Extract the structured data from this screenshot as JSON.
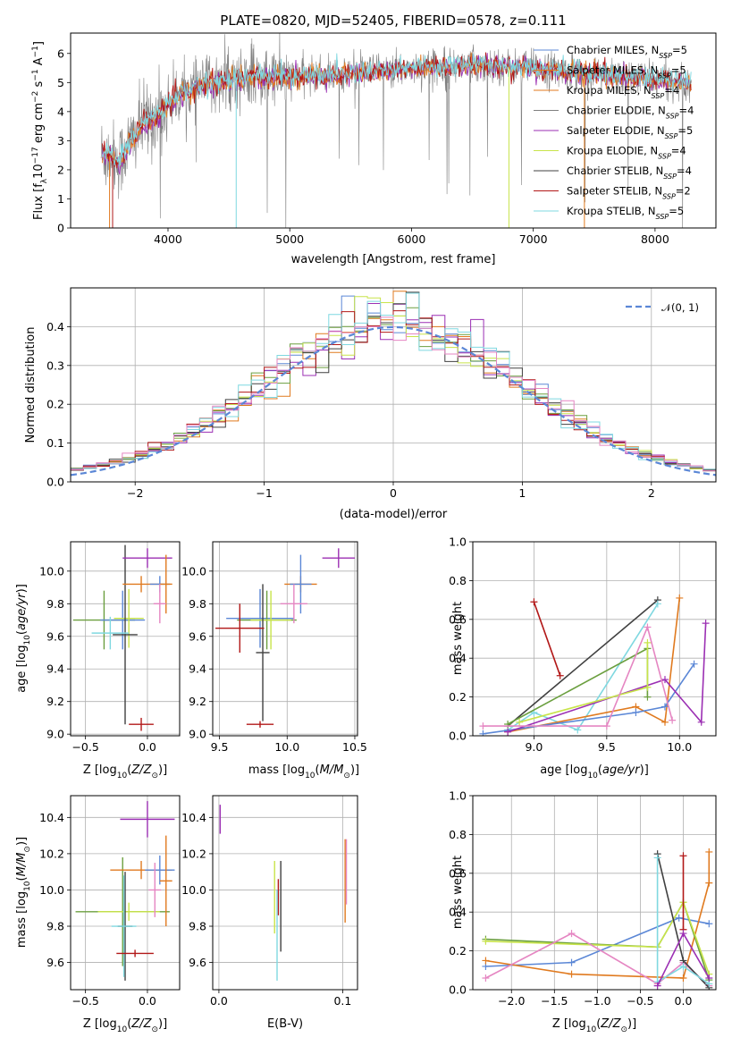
{
  "colors": {
    "cornflower": "#5b87d6",
    "orange": "#e07a1f",
    "green": "#6b9f3f",
    "purple": "#9b2fb3",
    "lime": "#c8e44a",
    "dark": "#404040",
    "red": "#b21818",
    "cyan": "#7fd8e0",
    "pink": "#e586c2",
    "gray": "#808080"
  },
  "chart_data": [
    {
      "id": "spectrum",
      "type": "line",
      "title": "PLATE=0820, MJD=52405, FIBERID=0578, z=0.111",
      "xlabel": "wavelength [Angstrom, rest frame]",
      "ylabel": "Flux [f_λ10^-17 erg cm^-2 s^-1 A^-1]",
      "xlim": [
        3200,
        8500
      ],
      "ylim": [
        0,
        6.7
      ],
      "xticks": [
        "4000",
        "5000",
        "6000",
        "7000",
        "8000"
      ],
      "yticks": [
        "0",
        "1",
        "2",
        "3",
        "4",
        "5",
        "6"
      ],
      "grid": false,
      "legend_position": "right",
      "data_range": [
        3450,
        8300
      ],
      "continuum": [
        [
          3450,
          2.6
        ],
        [
          3600,
          2.3
        ],
        [
          3700,
          3.0
        ],
        [
          3800,
          3.6
        ],
        [
          3950,
          4.0
        ],
        [
          4100,
          4.6
        ],
        [
          4300,
          4.9
        ],
        [
          4500,
          5.1
        ],
        [
          4700,
          5.2
        ],
        [
          5000,
          5.2
        ],
        [
          5500,
          5.3
        ],
        [
          6000,
          5.5
        ],
        [
          6500,
          5.6
        ],
        [
          7000,
          5.5
        ],
        [
          7500,
          5.3
        ],
        [
          8000,
          5.1
        ],
        [
          8300,
          5.0
        ]
      ],
      "series": [
        {
          "name": "Chabrier MILES, N_SSP=5",
          "color_key": "cornflower"
        },
        {
          "name": "Salpeter MILES, N_SSP=5",
          "color_key": "orange"
        },
        {
          "name": "Kroupa MILES, N_SSP=4",
          "color_key": "orange"
        },
        {
          "name": "Chabrier ELODIE, N_SSP=4",
          "color_key": "gray"
        },
        {
          "name": "Salpeter ELODIE, N_SSP=5",
          "color_key": "purple"
        },
        {
          "name": "Kroupa ELODIE, N_SSP=4",
          "color_key": "lime"
        },
        {
          "name": "Chabrier STELIB, N_SSP=4",
          "color_key": "dark"
        },
        {
          "name": "Salpeter STELIB, N_SSP=2",
          "color_key": "red"
        },
        {
          "name": "Kroupa STELIB, N_SSP=5",
          "color_key": "cyan"
        }
      ]
    },
    {
      "id": "residuals",
      "type": "line",
      "xlabel": "(data-model)/error",
      "ylabel": "Normed distribution",
      "xlim": [
        -2.5,
        2.5
      ],
      "ylim": [
        0,
        0.5
      ],
      "xticks": [
        "−2",
        "−1",
        "0",
        "1",
        "2"
      ],
      "yticks": [
        "0.0",
        "0.1",
        "0.2",
        "0.3",
        "0.4"
      ],
      "grid": true,
      "legend": "𝒩(0, 1)",
      "legend_position": "top-right",
      "bin_width": 0.1,
      "hist_colors": [
        "cornflower",
        "orange",
        "green",
        "purple",
        "lime",
        "dark",
        "red",
        "cyan",
        "pink"
      ]
    },
    {
      "id": "age-vs-Z",
      "type": "scatter",
      "xlabel": "Z [log10(Z/Z⊙)]",
      "ylabel": "age  [log10(age/yr)]",
      "xlim": [
        -0.62,
        0.26
      ],
      "ylim": [
        8.99,
        10.18
      ],
      "xticks": [
        "−0.5",
        "0.0"
      ],
      "yticks": [
        "9.0",
        "9.2",
        "9.4",
        "9.6",
        "9.8",
        "10.0"
      ],
      "points": [
        {
          "x": -0.35,
          "xerr": 0.25,
          "y": 9.7,
          "yerr": 0.18,
          "c": "green"
        },
        {
          "x": -0.2,
          "xerr": 0.18,
          "y": 9.7,
          "yerr": 0.18,
          "c": "cornflower"
        },
        {
          "x": -0.15,
          "xerr": 0.12,
          "y": 9.71,
          "yerr": 0.18,
          "c": "lime"
        },
        {
          "x": -0.18,
          "xerr": 0.1,
          "y": 9.61,
          "yerr": 0.55,
          "c": "dark"
        },
        {
          "x": -0.05,
          "xerr": 0.1,
          "y": 9.06,
          "yerr": 0.04,
          "c": "red"
        },
        {
          "x": -0.3,
          "xerr": 0.15,
          "y": 9.62,
          "yerr": 0.1,
          "c": "cyan"
        },
        {
          "x": 0.0,
          "xerr": 0.2,
          "y": 10.08,
          "yerr": 0.06,
          "c": "purple"
        },
        {
          "x": -0.05,
          "xerr": 0.15,
          "y": 9.92,
          "yerr": 0.05,
          "c": "orange"
        },
        {
          "x": 0.1,
          "xerr": 0.08,
          "y": 9.92,
          "yerr": 0.05,
          "c": "cornflower"
        },
        {
          "x": 0.15,
          "xerr": 0.05,
          "y": 9.92,
          "yerr": 0.18,
          "c": "orange"
        },
        {
          "x": 0.1,
          "xerr": 0.05,
          "y": 9.8,
          "yerr": 0.12,
          "c": "pink"
        }
      ]
    },
    {
      "id": "age-vs-mass",
      "type": "scatter",
      "xlabel": "mass [log10(M/M⊙)]",
      "xlim": [
        9.45,
        10.52
      ],
      "ylim": [
        8.99,
        10.18
      ],
      "xticks": [
        "9.5",
        "10.0",
        "10.5"
      ],
      "yticks": [
        "9.0",
        "9.2",
        "9.4",
        "9.6",
        "9.8",
        "10.0"
      ],
      "points": [
        {
          "x": 9.8,
          "xerr": 0.25,
          "y": 9.71,
          "yerr": 0.18,
          "c": "cornflower"
        },
        {
          "x": 9.85,
          "xerr": 0.22,
          "y": 9.7,
          "yerr": 0.18,
          "c": "green"
        },
        {
          "x": 9.88,
          "xerr": 0.15,
          "y": 9.7,
          "yerr": 0.18,
          "c": "lime"
        },
        {
          "x": 9.82,
          "xerr": 0.05,
          "y": 9.5,
          "yerr": 0.42,
          "c": "dark"
        },
        {
          "x": 9.8,
          "xerr": 0.1,
          "y": 9.06,
          "yerr": 0.02,
          "c": "red"
        },
        {
          "x": 9.65,
          "xerr": 0.18,
          "y": 9.65,
          "yerr": 0.15,
          "c": "red"
        },
        {
          "x": 10.1,
          "xerr": 0.12,
          "y": 9.92,
          "yerr": 0.05,
          "c": "orange"
        },
        {
          "x": 10.1,
          "xerr": 0.08,
          "y": 9.92,
          "yerr": 0.18,
          "c": "cornflower"
        },
        {
          "x": 10.38,
          "xerr": 0.12,
          "y": 10.08,
          "yerr": 0.06,
          "c": "purple"
        },
        {
          "x": 10.05,
          "xerr": 0.1,
          "y": 9.8,
          "yerr": 0.12,
          "c": "pink"
        }
      ]
    },
    {
      "id": "weight-vs-age",
      "type": "line",
      "xlabel": "age  [log10(age/yr)]",
      "ylabel": "mass weight",
      "xlim": [
        8.58,
        10.25
      ],
      "ylim": [
        0,
        1
      ],
      "xticks": [
        "9.0",
        "9.5",
        "10.0"
      ],
      "yticks": [
        "0.0",
        "0.2",
        "0.4",
        "0.6",
        "0.8",
        "1.0"
      ],
      "grid": true,
      "series": [
        {
          "c": "red",
          "x": [
            9.0,
            9.18
          ],
          "y": [
            0.69,
            0.31
          ]
        },
        {
          "c": "dark",
          "x": [
            8.82,
            9.85
          ],
          "y": [
            0.05,
            0.7
          ]
        },
        {
          "c": "cyan",
          "x": [
            8.82,
            9.0,
            9.3,
            9.85
          ],
          "y": [
            0.03,
            0.12,
            0.03,
            0.68
          ]
        },
        {
          "c": "orange",
          "x": [
            8.82,
            9.7,
            9.9,
            10.0
          ],
          "y": [
            0.02,
            0.15,
            0.07,
            0.71
          ]
        },
        {
          "c": "cornflower",
          "x": [
            8.65,
            9.7,
            9.9,
            10.1
          ],
          "y": [
            0.01,
            0.12,
            0.15,
            0.37
          ]
        },
        {
          "c": "purple",
          "x": [
            8.82,
            9.9,
            10.15,
            10.18
          ],
          "y": [
            0.02,
            0.29,
            0.07,
            0.58
          ]
        },
        {
          "c": "green",
          "x": [
            8.82,
            9.78,
            9.78
          ],
          "y": [
            0.06,
            0.45,
            0.2
          ]
        },
        {
          "c": "lime",
          "x": [
            8.9,
            9.78,
            9.78
          ],
          "y": [
            0.07,
            0.25,
            0.48
          ]
        },
        {
          "c": "pink",
          "x": [
            8.65,
            9.5,
            9.78,
            9.95
          ],
          "y": [
            0.05,
            0.05,
            0.56,
            0.08
          ]
        }
      ]
    },
    {
      "id": "mass-vs-Z",
      "type": "scatter",
      "xlabel": "Z [log10(Z/Z⊙)]",
      "ylabel": "mass [log10(M/M⊙)]",
      "xlim": [
        -0.62,
        0.26
      ],
      "ylim": [
        9.45,
        10.52
      ],
      "xticks": [
        "−0.5",
        "0.0"
      ],
      "yticks": [
        "9.6",
        "9.8",
        "10.0",
        "10.2",
        "10.4"
      ],
      "points": [
        {
          "x": -0.2,
          "xerr": 0.38,
          "y": 9.88,
          "yerr": 0.3,
          "c": "green"
        },
        {
          "x": -0.15,
          "xerr": 0.25,
          "y": 9.88,
          "yerr": 0.05,
          "c": "lime"
        },
        {
          "x": -0.18,
          "xerr": 0.06,
          "y": 9.8,
          "yerr": 0.3,
          "c": "dark"
        },
        {
          "x": -0.19,
          "xerr": 0.1,
          "y": 9.8,
          "yerr": 0.28,
          "c": "cyan"
        },
        {
          "x": -0.1,
          "xerr": 0.15,
          "y": 9.65,
          "yerr": 0.02,
          "c": "red"
        },
        {
          "x": -0.05,
          "xerr": 0.25,
          "y": 10.11,
          "yerr": 0.05,
          "c": "orange"
        },
        {
          "x": 0.0,
          "xerr": 0.22,
          "y": 10.39,
          "yerr": 0.1,
          "c": "purple"
        },
        {
          "x": 0.1,
          "xerr": 0.12,
          "y": 10.11,
          "yerr": 0.08,
          "c": "cornflower"
        },
        {
          "x": 0.15,
          "xerr": 0.05,
          "y": 10.05,
          "yerr": 0.25,
          "c": "orange"
        },
        {
          "x": 0.06,
          "xerr": 0.05,
          "y": 10.0,
          "yerr": 0.15,
          "c": "pink"
        }
      ]
    },
    {
      "id": "mass-vs-ebv",
      "type": "scatter",
      "xlabel": "E(B-V)",
      "xlim": [
        -0.005,
        0.112
      ],
      "ylim": [
        9.45,
        10.52
      ],
      "xticks": [
        "0.0",
        "0.1"
      ],
      "yticks": [
        "9.6",
        "9.8",
        "10.0",
        "10.2",
        "10.4"
      ],
      "points": [
        {
          "x": 0.001,
          "xerr": 0,
          "y": 10.39,
          "yerr": 0.08,
          "c": "purple"
        },
        {
          "x": 0.045,
          "xerr": 0,
          "y": 9.96,
          "yerr": 0.2,
          "c": "lime"
        },
        {
          "x": 0.048,
          "xerr": 0,
          "y": 9.96,
          "yerr": 0.1,
          "c": "red"
        },
        {
          "x": 0.05,
          "xerr": 0,
          "y": 9.91,
          "yerr": 0.25,
          "c": "dark"
        },
        {
          "x": 0.047,
          "xerr": 0,
          "y": 9.75,
          "yerr": 0.25,
          "c": "cyan"
        },
        {
          "x": 0.102,
          "xerr": 0,
          "y": 10.05,
          "yerr": 0.23,
          "c": "orange"
        },
        {
          "x": 0.103,
          "xerr": 0,
          "y": 10.1,
          "yerr": 0.18,
          "c": "pink"
        }
      ]
    },
    {
      "id": "weight-vs-Z",
      "type": "line",
      "xlabel": "Z [log10(Z/Z⊙)]",
      "ylabel": "mass weight",
      "xlim": [
        -2.45,
        0.38
      ],
      "ylim": [
        0,
        1
      ],
      "xticks": [
        "−2.0",
        "−1.5",
        "−1.0",
        "−0.5",
        "0.0"
      ],
      "yticks": [
        "0.0",
        "0.2",
        "0.4",
        "0.6",
        "0.8",
        "1.0"
      ],
      "grid": true,
      "series": [
        {
          "c": "cornflower",
          "x": [
            -2.3,
            -1.3,
            -0.05,
            0.3
          ],
          "y": [
            0.12,
            0.14,
            0.37,
            0.34
          ]
        },
        {
          "c": "orange",
          "x": [
            -2.3,
            -1.3,
            0.0,
            0.3,
            0.3
          ],
          "y": [
            0.15,
            0.08,
            0.06,
            0.55,
            0.71
          ]
        },
        {
          "c": "green",
          "x": [
            -2.3,
            -0.3,
            0.0,
            0.3
          ],
          "y": [
            0.26,
            0.22,
            0.45,
            0.05
          ]
        },
        {
          "c": "lime",
          "x": [
            -2.3,
            -0.3,
            0.0,
            0.3
          ],
          "y": [
            0.25,
            0.22,
            0.45,
            0.08
          ]
        },
        {
          "c": "pink",
          "x": [
            -2.3,
            -1.3,
            -0.3,
            0.0,
            0.3
          ],
          "y": [
            0.06,
            0.29,
            0.03,
            0.14,
            0.02
          ]
        },
        {
          "c": "dark",
          "x": [
            -0.3,
            0.0,
            0.3
          ],
          "y": [
            0.7,
            0.15,
            0.01
          ]
        },
        {
          "c": "cyan",
          "x": [
            -0.3,
            -0.3,
            0.0,
            0.3
          ],
          "y": [
            0.68,
            0.04,
            0.12,
            0.03
          ]
        },
        {
          "c": "red",
          "x": [
            0.0,
            0.0
          ],
          "y": [
            0.69,
            0.31
          ]
        },
        {
          "c": "purple",
          "x": [
            -0.3,
            0.0,
            0.3
          ],
          "y": [
            0.02,
            0.29,
            0.06
          ]
        }
      ]
    }
  ]
}
